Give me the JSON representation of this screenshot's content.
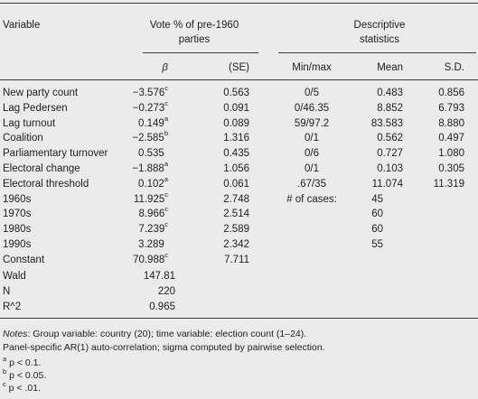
{
  "header": {
    "variable": "Variable",
    "group_line1": "Vote % of pre-1960",
    "group_line2": "parties",
    "desc_line1": "Descriptive",
    "desc_line2": "statistics",
    "beta": "β",
    "se": "(SE)",
    "minmax": "Min/max",
    "mean": "Mean",
    "sd": "S.D."
  },
  "rows": [
    {
      "label": "New party count",
      "beta": "−3.576",
      "sup": "c",
      "se": "0.563",
      "minmax": "0/5",
      "mean": "0.483",
      "sd": "0.856"
    },
    {
      "label": "Lag Pedersen",
      "beta": "−0.273",
      "sup": "c",
      "se": "0.091",
      "minmax": "0/46.35",
      "mean": "8.852",
      "sd": "6.793"
    },
    {
      "label": "Lag turnout",
      "beta": "0.149",
      "sup": "a",
      "se": "0.089",
      "minmax": "59/97.2",
      "mean": "83.583",
      "sd": "8.880"
    },
    {
      "label": "Coalition",
      "beta": "−2.585",
      "sup": "b",
      "se": "1.316",
      "minmax": "0/1",
      "mean": "0.562",
      "sd": "0.497"
    },
    {
      "label": "Parliamentary turnover",
      "beta": "0.535",
      "sup": "",
      "se": "0.435",
      "minmax": "0/6",
      "mean": "0.727",
      "sd": "1.080"
    },
    {
      "label": "Electoral change",
      "beta": "−1.888",
      "sup": "a",
      "se": "1.056",
      "minmax": "0/1",
      "mean": "0.103",
      "sd": "0.305"
    },
    {
      "label": "Electoral threshold",
      "beta": "0.102",
      "sup": "a",
      "se": "0.061",
      "minmax": ".67/35",
      "mean": "11.074",
      "sd": "11.319"
    },
    {
      "label": "1960s",
      "beta": "11.925",
      "sup": "c",
      "se": "2.748",
      "minmax": "# of cases:",
      "mean": "45",
      "sd": ""
    },
    {
      "label": "1970s",
      "beta": "8.966",
      "sup": "c",
      "se": "2.514",
      "minmax": "",
      "mean": "60",
      "sd": ""
    },
    {
      "label": "1980s",
      "beta": "7.239",
      "sup": "c",
      "se": "2.589",
      "minmax": "",
      "mean": "60",
      "sd": ""
    },
    {
      "label": "1990s",
      "beta": "3.289",
      "sup": "",
      "se": "2.342",
      "minmax": "",
      "mean": "55",
      "sd": ""
    },
    {
      "label": "Constant",
      "beta": "70.988",
      "sup": "c",
      "se": "7.711",
      "minmax": "",
      "mean": "",
      "sd": ""
    }
  ],
  "stats": [
    {
      "label": "Wald",
      "value": "147.81"
    },
    {
      "label": "N",
      "value": "220"
    },
    {
      "label": "R^2",
      "value": "0.965"
    }
  ],
  "notes": {
    "notes_label": "Notes",
    "line1_rest": ": Group variable: country (20); time variable: election count (1–24).",
    "line2": "Panel-specific AR(1) auto-correlation; sigma computed by pairwise selection."
  },
  "footnotes": [
    {
      "mark": "a",
      "text": " p < 0.1."
    },
    {
      "mark": "b",
      "text": " p < 0.05."
    },
    {
      "mark": "c",
      "text": " p < .01."
    }
  ]
}
